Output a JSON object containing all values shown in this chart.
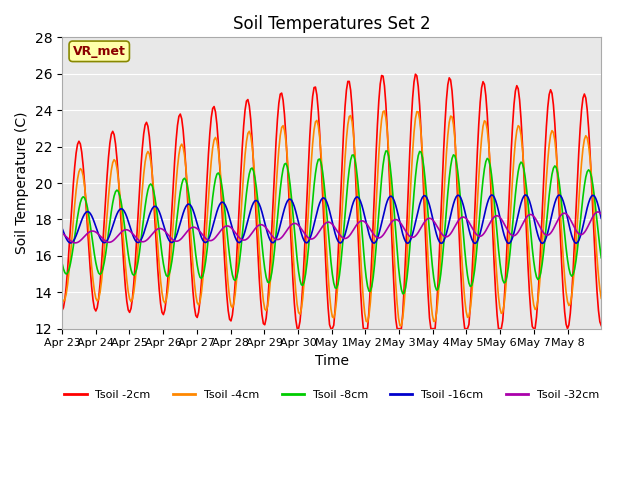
{
  "title": "Soil Temperatures Set 2",
  "xlabel": "Time",
  "ylabel": "Soil Temperature (C)",
  "ylim": [
    12,
    28
  ],
  "yticks": [
    12,
    14,
    16,
    18,
    20,
    22,
    24,
    26,
    28
  ],
  "xtick_labels": [
    "Apr 23",
    "Apr 24",
    "Apr 25",
    "Apr 26",
    "Apr 27",
    "Apr 28",
    "Apr 29",
    "Apr 30",
    "May 1",
    "May 2",
    "May 3",
    "May 4",
    "May 5",
    "May 6",
    "May 7",
    "May 8"
  ],
  "annotation_text": "VR_met",
  "bg_color": "#e8e8e8",
  "line_colors": {
    "2cm": "#ff0000",
    "4cm": "#ff8800",
    "8cm": "#00cc00",
    "16cm": "#0000cc",
    "32cm": "#aa00aa"
  },
  "legend_labels": [
    "Tsoil -2cm",
    "Tsoil -4cm",
    "Tsoil -8cm",
    "Tsoil -16cm",
    "Tsoil -32cm"
  ]
}
